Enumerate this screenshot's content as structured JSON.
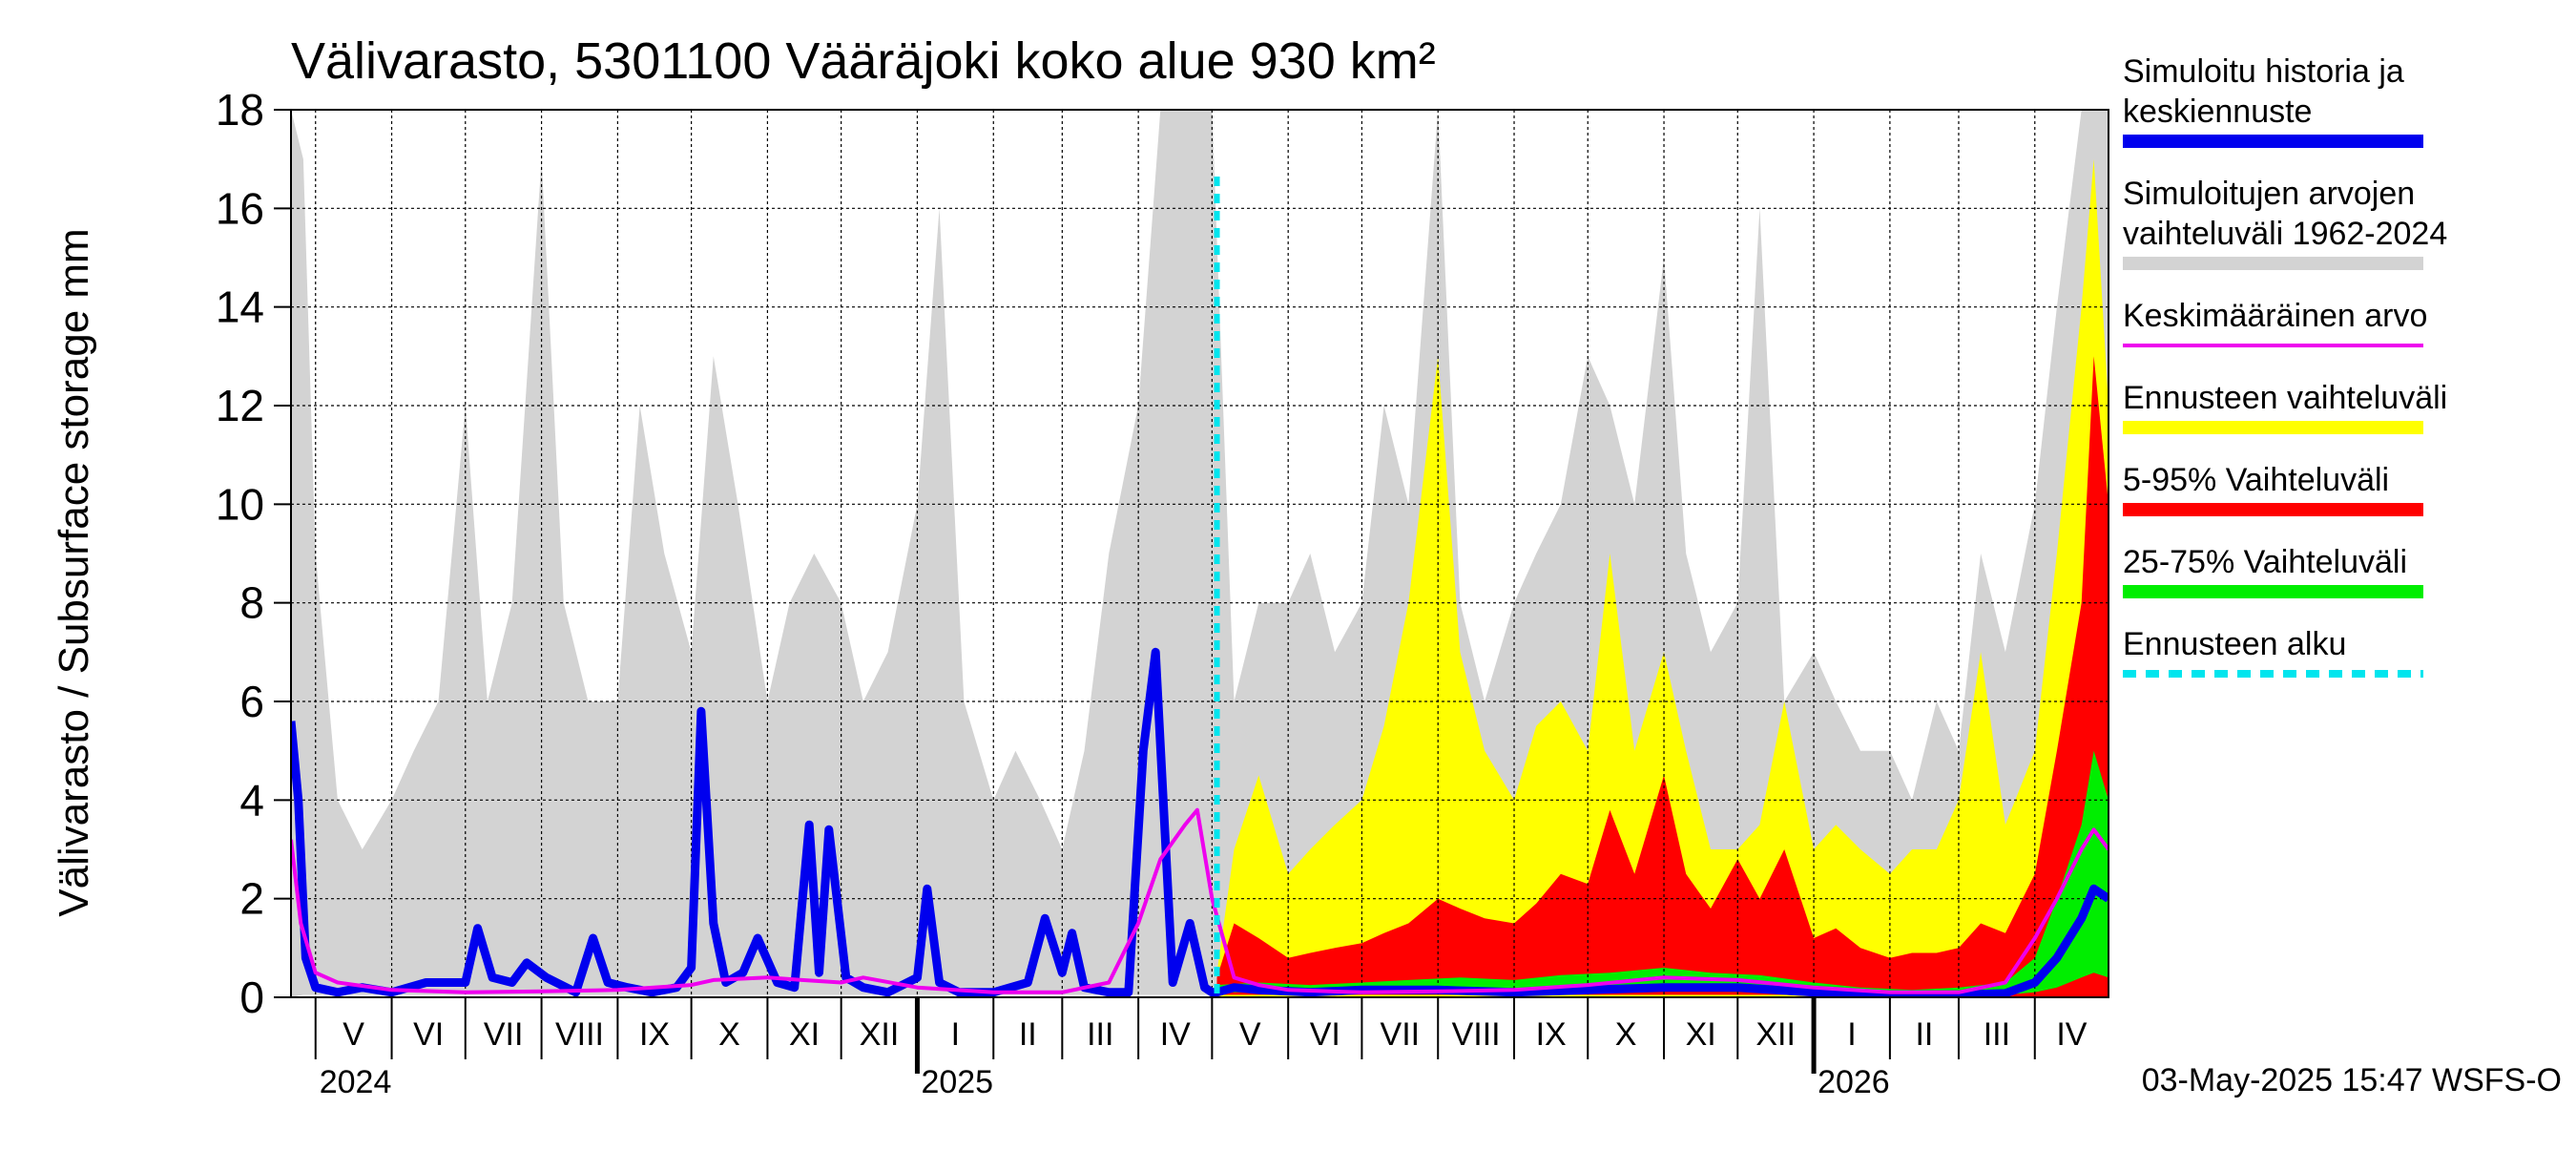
{
  "chart_data": {
    "type": "area",
    "title": "Välivarasto, 5301100 Vääräjoki koko alue 930 km²",
    "ylabel": "Välivarasto / Subsurface storage  mm",
    "ylim": [
      0,
      18
    ],
    "yticks": [
      0,
      2,
      4,
      6,
      8,
      10,
      12,
      14,
      16,
      18
    ],
    "x_range": [
      "2024-04-21",
      "2026-05-01"
    ],
    "forecast_start": "2025-05-03",
    "grid": true,
    "legend_position": "right",
    "months": [
      {
        "label": "V",
        "start": "2024-05-01"
      },
      {
        "label": "VI",
        "start": "2024-06-01"
      },
      {
        "label": "VII",
        "start": "2024-07-01"
      },
      {
        "label": "VIII",
        "start": "2024-08-01"
      },
      {
        "label": "IX",
        "start": "2024-09-01"
      },
      {
        "label": "X",
        "start": "2024-10-01"
      },
      {
        "label": "XI",
        "start": "2024-11-01"
      },
      {
        "label": "XII",
        "start": "2024-12-01"
      },
      {
        "label": "I",
        "start": "2025-01-01"
      },
      {
        "label": "II",
        "start": "2025-02-01"
      },
      {
        "label": "III",
        "start": "2025-03-01"
      },
      {
        "label": "IV",
        "start": "2025-04-01"
      },
      {
        "label": "V",
        "start": "2025-05-01"
      },
      {
        "label": "VI",
        "start": "2025-06-01"
      },
      {
        "label": "VII",
        "start": "2025-07-01"
      },
      {
        "label": "VIII",
        "start": "2025-08-01"
      },
      {
        "label": "IX",
        "start": "2025-09-01"
      },
      {
        "label": "X",
        "start": "2025-10-01"
      },
      {
        "label": "XI",
        "start": "2025-11-01"
      },
      {
        "label": "XII",
        "start": "2025-12-01"
      },
      {
        "label": "I",
        "start": "2026-01-01"
      },
      {
        "label": "II",
        "start": "2026-02-01"
      },
      {
        "label": "III",
        "start": "2026-03-01"
      },
      {
        "label": "IV",
        "start": "2026-04-01"
      }
    ],
    "years": [
      {
        "label": "2024",
        "start": "2024-05-01"
      },
      {
        "label": "2025",
        "start": "2025-01-01"
      },
      {
        "label": "2026",
        "start": "2026-01-01"
      }
    ],
    "legend": [
      {
        "label": "Simuloitu historia ja keskiennuste",
        "color": "#0000ee",
        "style": "thick"
      },
      {
        "label": "Simuloitujen arvojen vaihteluväli 1962-2024",
        "color": "#d3d3d3",
        "style": "thick"
      },
      {
        "label": "Keskimääräinen arvo",
        "color": "#ee00ee",
        "style": "thin"
      },
      {
        "label": "Ennusteen vaihteluväli",
        "color": "#ffff00",
        "style": "thick"
      },
      {
        "label": "5-95% Vaihteluväli",
        "color": "#ff0000",
        "style": "thick"
      },
      {
        "label": "25-75% Vaihteluväli",
        "color": "#00ee00",
        "style": "thick"
      },
      {
        "label": "Ennusteen alku",
        "color": "#00e5ee",
        "style": "dashed"
      }
    ],
    "series": [
      {
        "name": "Simuloitujen arvojen vaihteluväli 1962-2024",
        "color": "#d3d3d3",
        "x": [
          "2024-04-21",
          "2024-04-26",
          "2024-05-01",
          "2024-05-10",
          "2024-05-20",
          "2024-06-01",
          "2024-06-10",
          "2024-06-20",
          "2024-07-01",
          "2024-07-10",
          "2024-07-20",
          "2024-08-01",
          "2024-08-10",
          "2024-08-20",
          "2024-09-01",
          "2024-09-10",
          "2024-09-20",
          "2024-10-01",
          "2024-10-10",
          "2024-10-20",
          "2024-11-01",
          "2024-11-10",
          "2024-11-20",
          "2024-12-01",
          "2024-12-10",
          "2024-12-20",
          "2025-01-01",
          "2025-01-10",
          "2025-01-20",
          "2025-02-01",
          "2025-02-10",
          "2025-02-20",
          "2025-03-01",
          "2025-03-10",
          "2025-03-20",
          "2025-04-01",
          "2025-04-10",
          "2025-04-20",
          "2025-05-01",
          "2025-05-10",
          "2025-05-20",
          "2025-06-01",
          "2025-06-10",
          "2025-06-20",
          "2025-07-01",
          "2025-07-10",
          "2025-07-20",
          "2025-08-01",
          "2025-08-10",
          "2025-08-20",
          "2025-09-01",
          "2025-09-10",
          "2025-09-20",
          "2025-10-01",
          "2025-10-10",
          "2025-10-20",
          "2025-11-01",
          "2025-11-10",
          "2025-11-20",
          "2025-12-01",
          "2025-12-10",
          "2025-12-20",
          "2026-01-01",
          "2026-01-10",
          "2026-01-20",
          "2026-02-01",
          "2026-02-10",
          "2026-02-20",
          "2026-03-01",
          "2026-03-10",
          "2026-03-20",
          "2026-04-01",
          "2026-04-10",
          "2026-04-20",
          "2026-05-01"
        ],
        "high": [
          18,
          17,
          9,
          4,
          3,
          4,
          5,
          6,
          12,
          6,
          8,
          17,
          8,
          6,
          6,
          12,
          9,
          7,
          13,
          10,
          6,
          8,
          9,
          8,
          6,
          7,
          10,
          16,
          6,
          4,
          5,
          4,
          3,
          5,
          9,
          12,
          18,
          18,
          18,
          6,
          8,
          8,
          9,
          7,
          8,
          12,
          10,
          18,
          8,
          6,
          8,
          9,
          10,
          13,
          12,
          10,
          15,
          9,
          7,
          8,
          16,
          6,
          7,
          6,
          5,
          5,
          4,
          6,
          5,
          9,
          7,
          10,
          14,
          18,
          18
        ],
        "low": [
          0,
          0.05,
          0.05,
          0.05,
          0.05,
          0.05,
          0.05,
          0.05,
          0.05,
          0.05,
          0.05,
          0.05,
          0.05,
          0.05,
          0.05,
          0.05,
          0.05,
          0.05,
          0.05,
          0.05,
          0.05,
          0.05,
          0.05,
          0.05,
          0.05,
          0.05,
          0.05,
          0.05,
          0.05,
          0.05,
          0.05,
          0.05,
          0.05,
          0.05,
          0.05,
          0.05,
          0.05,
          0.05,
          0.05,
          0.05,
          0.05,
          0.05,
          0.05,
          0.05,
          0.05,
          0.05,
          0.05,
          0.05,
          0.05,
          0.05,
          0.05,
          0.05,
          0.05,
          0.05,
          0.05,
          0.05,
          0.05,
          0.05,
          0.05,
          0.05,
          0.05,
          0.05,
          0.05,
          0.05,
          0.05,
          0.05,
          0.05,
          0.05,
          0.05,
          0.05,
          0.05,
          0.05,
          0.05,
          0.05,
          0.05
        ]
      },
      {
        "name": "Ennusteen vaihteluväli",
        "color": "#ffff00",
        "x": [
          "2025-05-03",
          "2025-05-10",
          "2025-05-20",
          "2025-06-01",
          "2025-06-10",
          "2025-06-20",
          "2025-07-01",
          "2025-07-10",
          "2025-07-20",
          "2025-08-01",
          "2025-08-10",
          "2025-08-20",
          "2025-09-01",
          "2025-09-10",
          "2025-09-20",
          "2025-10-01",
          "2025-10-10",
          "2025-10-20",
          "2025-11-01",
          "2025-11-10",
          "2025-11-20",
          "2025-12-01",
          "2025-12-10",
          "2025-12-20",
          "2026-01-01",
          "2026-01-10",
          "2026-01-20",
          "2026-02-01",
          "2026-02-10",
          "2026-02-20",
          "2026-03-01",
          "2026-03-10",
          "2026-03-20",
          "2026-04-01",
          "2026-04-10",
          "2026-04-20",
          "2026-04-25",
          "2026-05-01"
        ],
        "high": [
          0.5,
          3,
          4.5,
          2.5,
          3,
          3.5,
          4,
          5.5,
          8,
          13,
          7,
          5,
          4,
          5.5,
          6,
          5,
          9,
          5,
          7,
          5,
          3,
          3,
          3.5,
          6,
          3,
          3.5,
          3,
          2.5,
          3,
          3,
          4,
          7,
          3.5,
          5,
          9,
          14,
          17,
          12
        ],
        "low": [
          0,
          0,
          0,
          0,
          0,
          0,
          0,
          0,
          0,
          0,
          0,
          0,
          0,
          0,
          0,
          0,
          0,
          0,
          0,
          0,
          0,
          0,
          0,
          0,
          0,
          0,
          0,
          0,
          0,
          0,
          0,
          0,
          0,
          0,
          0,
          0,
          0,
          0
        ]
      },
      {
        "name": "5-95% Vaihteluväli",
        "color": "#ff0000",
        "x": [
          "2025-05-03",
          "2025-05-10",
          "2025-05-20",
          "2025-06-01",
          "2025-06-10",
          "2025-06-20",
          "2025-07-01",
          "2025-07-10",
          "2025-07-20",
          "2025-08-01",
          "2025-08-10",
          "2025-08-20",
          "2025-09-01",
          "2025-09-10",
          "2025-09-20",
          "2025-10-01",
          "2025-10-10",
          "2025-10-20",
          "2025-11-01",
          "2025-11-10",
          "2025-11-20",
          "2025-12-01",
          "2025-12-10",
          "2025-12-20",
          "2026-01-01",
          "2026-01-10",
          "2026-01-20",
          "2026-02-01",
          "2026-02-10",
          "2026-02-20",
          "2026-03-01",
          "2026-03-10",
          "2026-03-20",
          "2026-04-01",
          "2026-04-10",
          "2026-04-20",
          "2026-04-25",
          "2026-05-01"
        ],
        "high": [
          0.4,
          1.5,
          1.2,
          0.8,
          0.9,
          1,
          1.1,
          1.3,
          1.5,
          2,
          1.8,
          1.6,
          1.5,
          1.9,
          2.5,
          2.3,
          3.8,
          2.5,
          4.5,
          2.5,
          1.8,
          2.8,
          2,
          3,
          1.2,
          1.4,
          1,
          0.8,
          0.9,
          0.9,
          1,
          1.5,
          1.3,
          2.5,
          5,
          8,
          13,
          10
        ],
        "low": [
          0.05,
          0.05,
          0.05,
          0.05,
          0.05,
          0.05,
          0.05,
          0.05,
          0.05,
          0.05,
          0.05,
          0.05,
          0.05,
          0.05,
          0.05,
          0.05,
          0.05,
          0.05,
          0.05,
          0.05,
          0.05,
          0.05,
          0.05,
          0.05,
          0.02,
          0.02,
          0.02,
          0.02,
          0.02,
          0.02,
          0.02,
          0.02,
          0.02,
          0.02,
          0.02,
          0.02,
          0.02,
          0.02
        ]
      },
      {
        "name": "25-75% Vaihteluväli",
        "color": "#00ee00",
        "x": [
          "2025-05-03",
          "2025-05-20",
          "2025-06-10",
          "2025-07-01",
          "2025-07-20",
          "2025-08-10",
          "2025-09-01",
          "2025-09-20",
          "2025-10-10",
          "2025-11-01",
          "2025-11-20",
          "2025-12-10",
          "2026-01-01",
          "2026-01-20",
          "2026-02-10",
          "2026-03-01",
          "2026-03-20",
          "2026-04-01",
          "2026-04-10",
          "2026-04-20",
          "2026-04-25",
          "2026-05-01"
        ],
        "high": [
          0.25,
          0.3,
          0.25,
          0.3,
          0.35,
          0.4,
          0.35,
          0.45,
          0.5,
          0.6,
          0.5,
          0.45,
          0.3,
          0.2,
          0.15,
          0.2,
          0.3,
          0.8,
          2,
          3.5,
          5,
          4
        ],
        "low": [
          0.1,
          0.1,
          0.08,
          0.08,
          0.08,
          0.1,
          0.1,
          0.1,
          0.12,
          0.15,
          0.12,
          0.1,
          0.05,
          0.05,
          0.05,
          0.05,
          0.05,
          0.1,
          0.2,
          0.4,
          0.5,
          0.4
        ]
      },
      {
        "name": "Simuloitu historia ja keskiennuste",
        "color": "#0000ee",
        "x": [
          "2024-04-21",
          "2024-04-24",
          "2024-04-27",
          "2024-05-01",
          "2024-05-10",
          "2024-05-20",
          "2024-06-01",
          "2024-06-15",
          "2024-07-01",
          "2024-07-06",
          "2024-07-12",
          "2024-07-20",
          "2024-07-26",
          "2024-08-03",
          "2024-08-15",
          "2024-08-22",
          "2024-08-28",
          "2024-09-05",
          "2024-09-15",
          "2024-09-25",
          "2024-10-01",
          "2024-10-05",
          "2024-10-10",
          "2024-10-15",
          "2024-10-22",
          "2024-10-28",
          "2024-11-05",
          "2024-11-12",
          "2024-11-18",
          "2024-11-22",
          "2024-11-26",
          "2024-12-03",
          "2024-12-10",
          "2024-12-20",
          "2025-01-01",
          "2025-01-05",
          "2025-01-10",
          "2025-01-18",
          "2025-02-01",
          "2025-02-15",
          "2025-02-22",
          "2025-03-01",
          "2025-03-05",
          "2025-03-10",
          "2025-03-20",
          "2025-03-28",
          "2025-04-03",
          "2025-04-08",
          "2025-04-15",
          "2025-04-22",
          "2025-04-28",
          "2025-05-01",
          "2025-05-03",
          "2025-05-10",
          "2025-05-20",
          "2025-06-10",
          "2025-07-01",
          "2025-08-01",
          "2025-09-01",
          "2025-10-01",
          "2025-11-01",
          "2025-12-01",
          "2026-01-01",
          "2026-02-01",
          "2026-03-01",
          "2026-03-20",
          "2026-04-01",
          "2026-04-10",
          "2026-04-20",
          "2026-04-25",
          "2026-05-01"
        ],
        "values": [
          5.6,
          4,
          0.8,
          0.2,
          0.1,
          0.2,
          0.1,
          0.3,
          0.3,
          1.4,
          0.4,
          0.3,
          0.7,
          0.4,
          0.1,
          1.2,
          0.3,
          0.2,
          0.1,
          0.2,
          0.6,
          5.8,
          1.5,
          0.3,
          0.5,
          1.2,
          0.3,
          0.2,
          3.5,
          0.5,
          3.4,
          0.4,
          0.2,
          0.1,
          0.4,
          2.2,
          0.3,
          0.1,
          0.1,
          0.3,
          1.6,
          0.5,
          1.3,
          0.2,
          0.1,
          0.1,
          5,
          7,
          0.3,
          1.5,
          0.2,
          0.1,
          0.1,
          0.2,
          0.15,
          0.1,
          0.15,
          0.15,
          0.1,
          0.15,
          0.2,
          0.2,
          0.1,
          0.05,
          0.05,
          0.08,
          0.3,
          0.8,
          1.6,
          2.2,
          2
        ]
      },
      {
        "name": "Keskimääräinen arvo",
        "color": "#ee00ee",
        "x": [
          "2024-04-21",
          "2024-04-25",
          "2024-05-01",
          "2024-05-10",
          "2024-06-01",
          "2024-07-01",
          "2024-08-01",
          "2024-09-01",
          "2024-10-01",
          "2024-10-10",
          "2024-11-01",
          "2024-11-15",
          "2024-12-01",
          "2024-12-10",
          "2025-01-01",
          "2025-02-01",
          "2025-03-01",
          "2025-03-20",
          "2025-04-01",
          "2025-04-10",
          "2025-04-20",
          "2025-04-25",
          "2025-05-01",
          "2025-05-10",
          "2025-05-20",
          "2025-06-01",
          "2025-07-01",
          "2025-08-01",
          "2025-09-01",
          "2025-10-01",
          "2025-11-01",
          "2025-12-01",
          "2026-01-01",
          "2026-02-01",
          "2026-03-01",
          "2026-03-20",
          "2026-04-01",
          "2026-04-10",
          "2026-04-20",
          "2026-04-25",
          "2026-05-01"
        ],
        "values": [
          3.2,
          1.5,
          0.5,
          0.3,
          0.15,
          0.1,
          0.12,
          0.15,
          0.25,
          0.35,
          0.4,
          0.35,
          0.3,
          0.4,
          0.2,
          0.1,
          0.1,
          0.3,
          1.5,
          2.8,
          3.5,
          3.8,
          2,
          0.4,
          0.25,
          0.15,
          0.1,
          0.12,
          0.15,
          0.25,
          0.4,
          0.35,
          0.2,
          0.1,
          0.1,
          0.3,
          1.2,
          2,
          3,
          3.4,
          3
        ]
      }
    ],
    "footer": "03-May-2025 15:47 WSFS-O"
  }
}
